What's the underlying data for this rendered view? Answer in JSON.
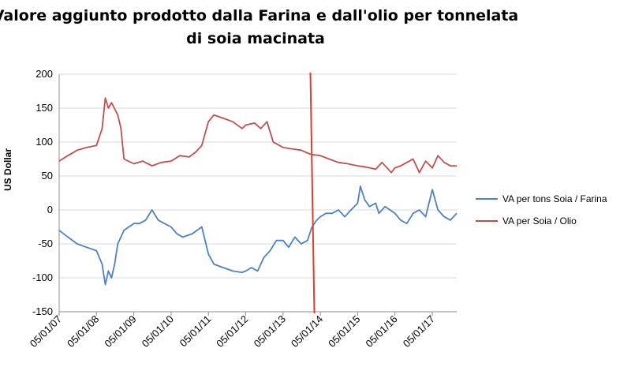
{
  "chart_data": {
    "type": "line",
    "title_lines": [
      "Valore aggiunto prodotto dalla Farina e dall'olio per tonnelata",
      "di soia macinata"
    ],
    "ylabel": "US  Dollar",
    "xlabel": "",
    "ylim": [
      -150,
      200
    ],
    "yticks": [
      200,
      150,
      100,
      50,
      0,
      -50,
      -100,
      -150
    ],
    "xlim": [
      "2007-01-05",
      "2017-09-01"
    ],
    "xticks": [
      "05/01/07",
      "05/01/08",
      "05/01/09",
      "05/01/10",
      "05/01/11",
      "05/01/12",
      "05/01/13",
      "05/01/14",
      "05/01/15",
      "05/01/16",
      "05/01/17"
    ],
    "xtick_dates": [
      "2007-01-05",
      "2008-01-05",
      "2009-01-05",
      "2010-01-05",
      "2011-01-05",
      "2012-01-05",
      "2013-01-05",
      "2014-01-05",
      "2015-01-05",
      "2016-01-05",
      "2017-01-05"
    ],
    "grid": "horizontal",
    "legend_position": "right",
    "vertical_marker": {
      "date": "2013-10-15",
      "color": "#e53a2a"
    },
    "series": [
      {
        "name": "VA per tons Soia / Farina",
        "color": "#4f81bd",
        "x": [
          "2007-01-05",
          "2007-04-01",
          "2007-07-01",
          "2007-10-01",
          "2008-01-05",
          "2008-03-01",
          "2008-04-01",
          "2008-05-01",
          "2008-06-01",
          "2008-07-01",
          "2008-08-01",
          "2008-10-01",
          "2009-01-05",
          "2009-03-01",
          "2009-05-01",
          "2009-07-01",
          "2009-09-01",
          "2009-11-01",
          "2010-01-05",
          "2010-03-01",
          "2010-05-01",
          "2010-08-01",
          "2010-11-01",
          "2011-01-05",
          "2011-03-01",
          "2011-06-01",
          "2011-09-01",
          "2011-12-01",
          "2012-01-05",
          "2012-03-01",
          "2012-05-01",
          "2012-07-01",
          "2012-09-01",
          "2012-11-01",
          "2013-01-05",
          "2013-03-01",
          "2013-05-01",
          "2013-07-01",
          "2013-09-01",
          "2013-10-15",
          "2013-12-01",
          "2014-01-05",
          "2014-03-01",
          "2014-05-01",
          "2014-07-01",
          "2014-09-01",
          "2014-11-01",
          "2015-01-05",
          "2015-02-01",
          "2015-03-15",
          "2015-05-01",
          "2015-07-01",
          "2015-08-01",
          "2015-10-01",
          "2016-01-05",
          "2016-03-01",
          "2016-05-01",
          "2016-07-01",
          "2016-09-01",
          "2016-11-01",
          "2017-01-05",
          "2017-03-01",
          "2017-05-01",
          "2017-07-01",
          "2017-09-01"
        ],
        "y": [
          -30,
          -40,
          -50,
          -55,
          -60,
          -80,
          -110,
          -90,
          -100,
          -80,
          -50,
          -30,
          -20,
          -20,
          -15,
          0,
          -15,
          -20,
          -25,
          -35,
          -40,
          -35,
          -25,
          -65,
          -80,
          -85,
          -90,
          -92,
          -90,
          -85,
          -90,
          -70,
          -60,
          -45,
          -45,
          -55,
          -40,
          -50,
          -45,
          -25,
          -15,
          -10,
          -5,
          -5,
          0,
          -10,
          0,
          10,
          35,
          15,
          5,
          10,
          -5,
          5,
          -5,
          -15,
          -20,
          -5,
          0,
          -10,
          30,
          0,
          -10,
          -15,
          -5
        ]
      },
      {
        "name": "VA per Soia / Olio",
        "color": "#c0504d",
        "x": [
          "2007-01-05",
          "2007-04-01",
          "2007-07-01",
          "2007-10-01",
          "2008-01-05",
          "2008-03-01",
          "2008-04-01",
          "2008-05-01",
          "2008-06-01",
          "2008-08-01",
          "2008-09-01",
          "2008-10-01",
          "2009-01-05",
          "2009-04-01",
          "2009-07-01",
          "2009-10-01",
          "2010-01-05",
          "2010-04-01",
          "2010-07-01",
          "2010-09-01",
          "2010-11-01",
          "2011-01-05",
          "2011-03-01",
          "2011-06-01",
          "2011-09-01",
          "2011-12-01",
          "2012-01-05",
          "2012-04-01",
          "2012-06-01",
          "2012-08-01",
          "2012-10-01",
          "2012-12-01",
          "2013-01-05",
          "2013-04-01",
          "2013-07-01",
          "2013-10-01",
          "2014-01-05",
          "2014-04-01",
          "2014-07-01",
          "2014-10-01",
          "2015-01-05",
          "2015-04-01",
          "2015-07-01",
          "2015-09-01",
          "2015-12-01",
          "2016-01-05",
          "2016-03-01",
          "2016-05-01",
          "2016-07-01",
          "2016-09-01",
          "2016-11-01",
          "2017-01-05",
          "2017-03-01",
          "2017-05-01",
          "2017-07-01",
          "2017-09-01"
        ],
        "y": [
          72,
          80,
          88,
          92,
          95,
          120,
          165,
          150,
          158,
          140,
          120,
          75,
          68,
          72,
          65,
          70,
          72,
          80,
          78,
          85,
          95,
          130,
          140,
          135,
          130,
          120,
          125,
          128,
          120,
          130,
          100,
          95,
          92,
          90,
          88,
          82,
          80,
          75,
          70,
          68,
          65,
          63,
          60,
          70,
          55,
          62,
          65,
          70,
          75,
          55,
          72,
          62,
          80,
          70,
          65,
          65
        ]
      }
    ]
  }
}
